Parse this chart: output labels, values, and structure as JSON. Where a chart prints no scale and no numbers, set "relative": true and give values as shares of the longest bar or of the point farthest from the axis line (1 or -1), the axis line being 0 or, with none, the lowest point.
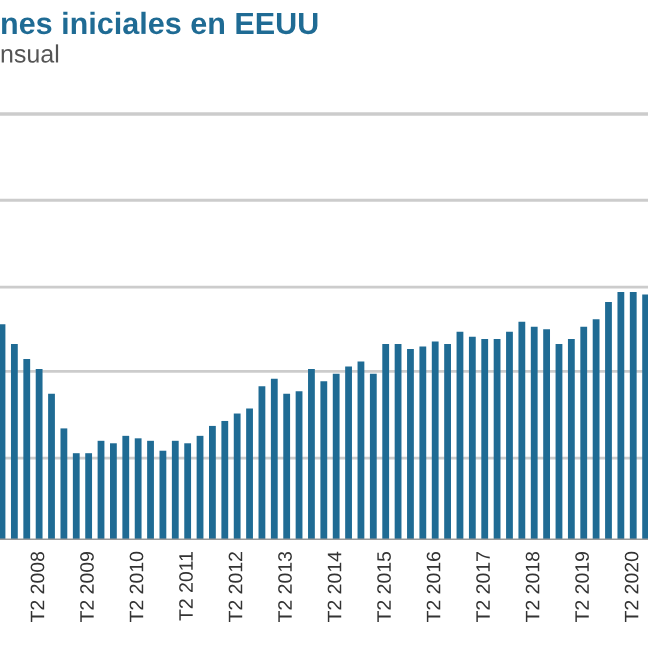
{
  "chart_data": {
    "type": "bar",
    "title": "nes iniciales en EEUU",
    "subtitle": "nsual",
    "relative": true,
    "ref_lines": [
      {
        "axis": "y",
        "value": 0.33,
        "color": "#cccccc"
      },
      {
        "axis": "y",
        "value": 0.68,
        "color": "#cccccc"
      },
      {
        "axis": "y",
        "value": 1.02,
        "color": "#cccccc"
      },
      {
        "axis": "y",
        "value": 1.37,
        "color": "#cccccc"
      }
    ],
    "categories": [
      null,
      null,
      null,
      "T2 2008",
      null,
      null,
      null,
      "T2 2009",
      null,
      null,
      null,
      "T2 2010",
      null,
      null,
      null,
      "T2 2011",
      null,
      null,
      null,
      "T2 2012",
      null,
      null,
      null,
      "T2 2013",
      null,
      null,
      null,
      "T2 2014",
      null,
      null,
      null,
      "T2 2015",
      null,
      null,
      null,
      "T2 2016",
      null,
      null,
      null,
      "T2 2017",
      null,
      null,
      null,
      "T2 2018",
      null,
      null,
      null,
      "T2 2019",
      null,
      null,
      null,
      "T2 2020",
      null
    ],
    "values": [
      0.87,
      0.79,
      0.73,
      0.69,
      0.59,
      0.45,
      0.35,
      0.35,
      0.4,
      0.39,
      0.42,
      0.41,
      0.4,
      0.36,
      0.4,
      0.39,
      0.42,
      0.46,
      0.48,
      0.51,
      0.53,
      0.62,
      0.65,
      0.59,
      0.6,
      0.69,
      0.64,
      0.67,
      0.7,
      0.72,
      0.67,
      0.79,
      0.79,
      0.77,
      0.78,
      0.8,
      0.79,
      0.84,
      0.82,
      0.81,
      0.81,
      0.84,
      0.88,
      0.86,
      0.85,
      0.79,
      0.81,
      0.86,
      0.89,
      0.96,
      1,
      1,
      0.99
    ],
    "color": "#1f6b94"
  }
}
